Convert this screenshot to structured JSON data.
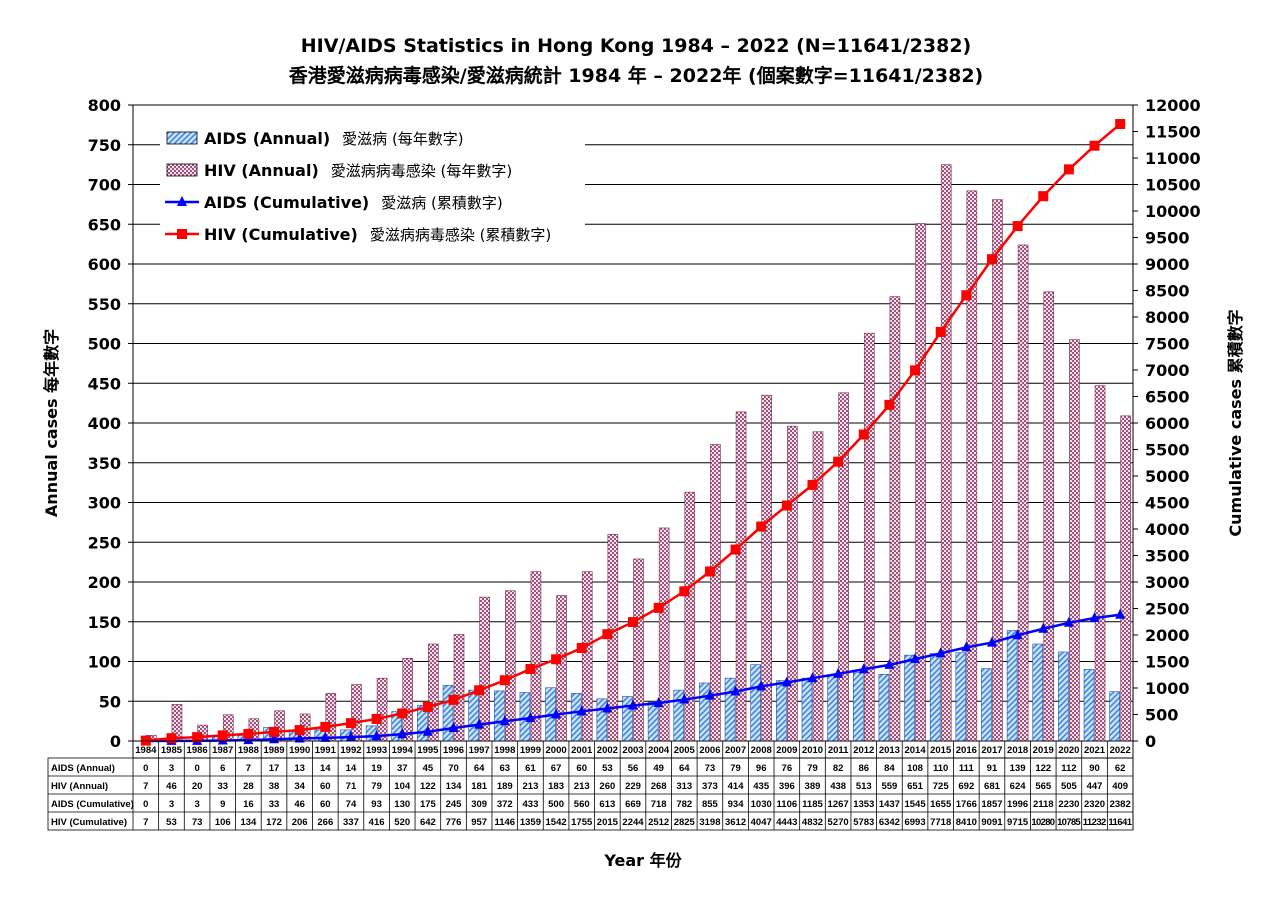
{
  "chart_data": {
    "type": "bar+line",
    "title": "HIV/AIDS Statistics in Hong Kong 1984 – 2022 (N=11641/2382)",
    "subtitle": "香港愛滋病病毒感染/愛滋病統計 1984 年 – 2022年 (個案數字=11641/2382)",
    "xlabel": "Year  年份",
    "ylabel_left": "Annual cases  每年數字",
    "ylabel_right": "Cumulative cases  累積數字",
    "ylim_left": [
      0,
      800
    ],
    "ylim_right": [
      0,
      12000
    ],
    "yticks_left": [
      0,
      50,
      100,
      150,
      200,
      250,
      300,
      350,
      400,
      450,
      500,
      550,
      600,
      650,
      700,
      750,
      800
    ],
    "yticks_right": [
      0,
      500,
      1000,
      1500,
      2000,
      2500,
      3000,
      3500,
      4000,
      4500,
      5000,
      5500,
      6000,
      6500,
      7000,
      7500,
      8000,
      8500,
      9000,
      9500,
      10000,
      10500,
      11000,
      11500,
      12000
    ],
    "grid": "horizontal",
    "legend_placement": "top-left",
    "categories": [
      "1984",
      "1985",
      "1986",
      "1987",
      "1988",
      "1989",
      "1990",
      "1991",
      "1992",
      "1993",
      "1994",
      "1995",
      "1996",
      "1997",
      "1998",
      "1999",
      "2000",
      "2001",
      "2002",
      "2003",
      "2004",
      "2005",
      "2006",
      "2007",
      "2008",
      "2009",
      "2010",
      "2011",
      "2012",
      "2013",
      "2014",
      "2015",
      "2016",
      "2017",
      "2018",
      "2019",
      "2020",
      "2021",
      "2022"
    ],
    "series": [
      {
        "name": "AIDS (Annual)",
        "name_zh": "愛滋病 (每年數字)",
        "table_label": "AIDS (Annual)",
        "type": "bar",
        "axis": "left",
        "color": "#4a90e2",
        "values": [
          0,
          3,
          0,
          6,
          7,
          17,
          13,
          14,
          14,
          19,
          37,
          45,
          70,
          64,
          63,
          61,
          67,
          60,
          53,
          56,
          49,
          64,
          73,
          79,
          96,
          76,
          79,
          82,
          86,
          84,
          108,
          110,
          111,
          91,
          139,
          122,
          112,
          90,
          62
        ]
      },
      {
        "name": "HIV (Annual)",
        "name_zh": "愛滋病病毒感染 (每年數字)",
        "table_label": "HIV (Annual)",
        "type": "bar",
        "axis": "left",
        "color": "#a0507a",
        "values": [
          7,
          46,
          20,
          33,
          28,
          38,
          34,
          60,
          71,
          79,
          104,
          122,
          134,
          181,
          189,
          213,
          183,
          213,
          260,
          229,
          268,
          313,
          373,
          414,
          435,
          396,
          389,
          438,
          513,
          559,
          651,
          725,
          692,
          681,
          624,
          565,
          505,
          447,
          409
        ]
      },
      {
        "name": "AIDS (Cumulative)",
        "name_zh": "愛滋病 (累積數字)",
        "table_label": "AIDS (Cumulative)",
        "type": "line",
        "axis": "right",
        "color": "#0000ff",
        "marker": "triangle",
        "values": [
          0,
          3,
          3,
          9,
          16,
          33,
          46,
          60,
          74,
          93,
          130,
          175,
          245,
          309,
          372,
          433,
          500,
          560,
          613,
          669,
          718,
          782,
          855,
          934,
          1030,
          1106,
          1185,
          1267,
          1353,
          1437,
          1545,
          1655,
          1766,
          1857,
          1996,
          2118,
          2230,
          2320,
          2382
        ]
      },
      {
        "name": "HIV (Cumulative)",
        "name_zh": "愛滋病病毒感染 (累積數字)",
        "table_label": "HIV (Cumulative)",
        "type": "line",
        "axis": "right",
        "color": "#ff0000",
        "marker": "square",
        "values": [
          7,
          53,
          73,
          106,
          134,
          172,
          206,
          266,
          337,
          416,
          520,
          642,
          776,
          957,
          1146,
          1359,
          1542,
          1755,
          2015,
          2244,
          2512,
          2825,
          3198,
          3612,
          4047,
          4443,
          4832,
          5270,
          5783,
          6342,
          6993,
          7718,
          8410,
          9091,
          9715,
          10280,
          10785,
          11232,
          11641
        ]
      }
    ]
  }
}
